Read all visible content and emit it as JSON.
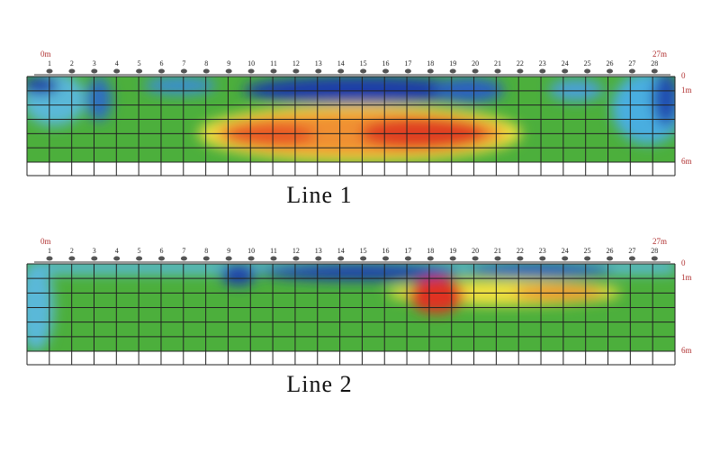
{
  "panels": [
    {
      "start_label": "0m",
      "end_label": "27m",
      "electrodes": [
        "1",
        "2",
        "3",
        "4",
        "5",
        "6",
        "7",
        "8",
        "9",
        "10",
        "11",
        "12",
        "13",
        "14",
        "15",
        "16",
        "17",
        "18",
        "19",
        "20",
        "21",
        "22",
        "23",
        "24",
        "25",
        "26",
        "27",
        "28"
      ],
      "depth_labels": [
        "0",
        "1m",
        "6m"
      ],
      "caption": "Line 1"
    },
    {
      "start_label": "0m",
      "end_label": "27m",
      "electrodes": [
        "1",
        "2",
        "3",
        "4",
        "5",
        "6",
        "7",
        "8",
        "9",
        "10",
        "11",
        "12",
        "13",
        "14",
        "15",
        "16",
        "17",
        "18",
        "19",
        "20",
        "21",
        "22",
        "23",
        "24",
        "25",
        "26",
        "27",
        "28"
      ],
      "depth_labels": [
        "0",
        "1m",
        "6m"
      ],
      "caption": "Line 2"
    }
  ]
}
